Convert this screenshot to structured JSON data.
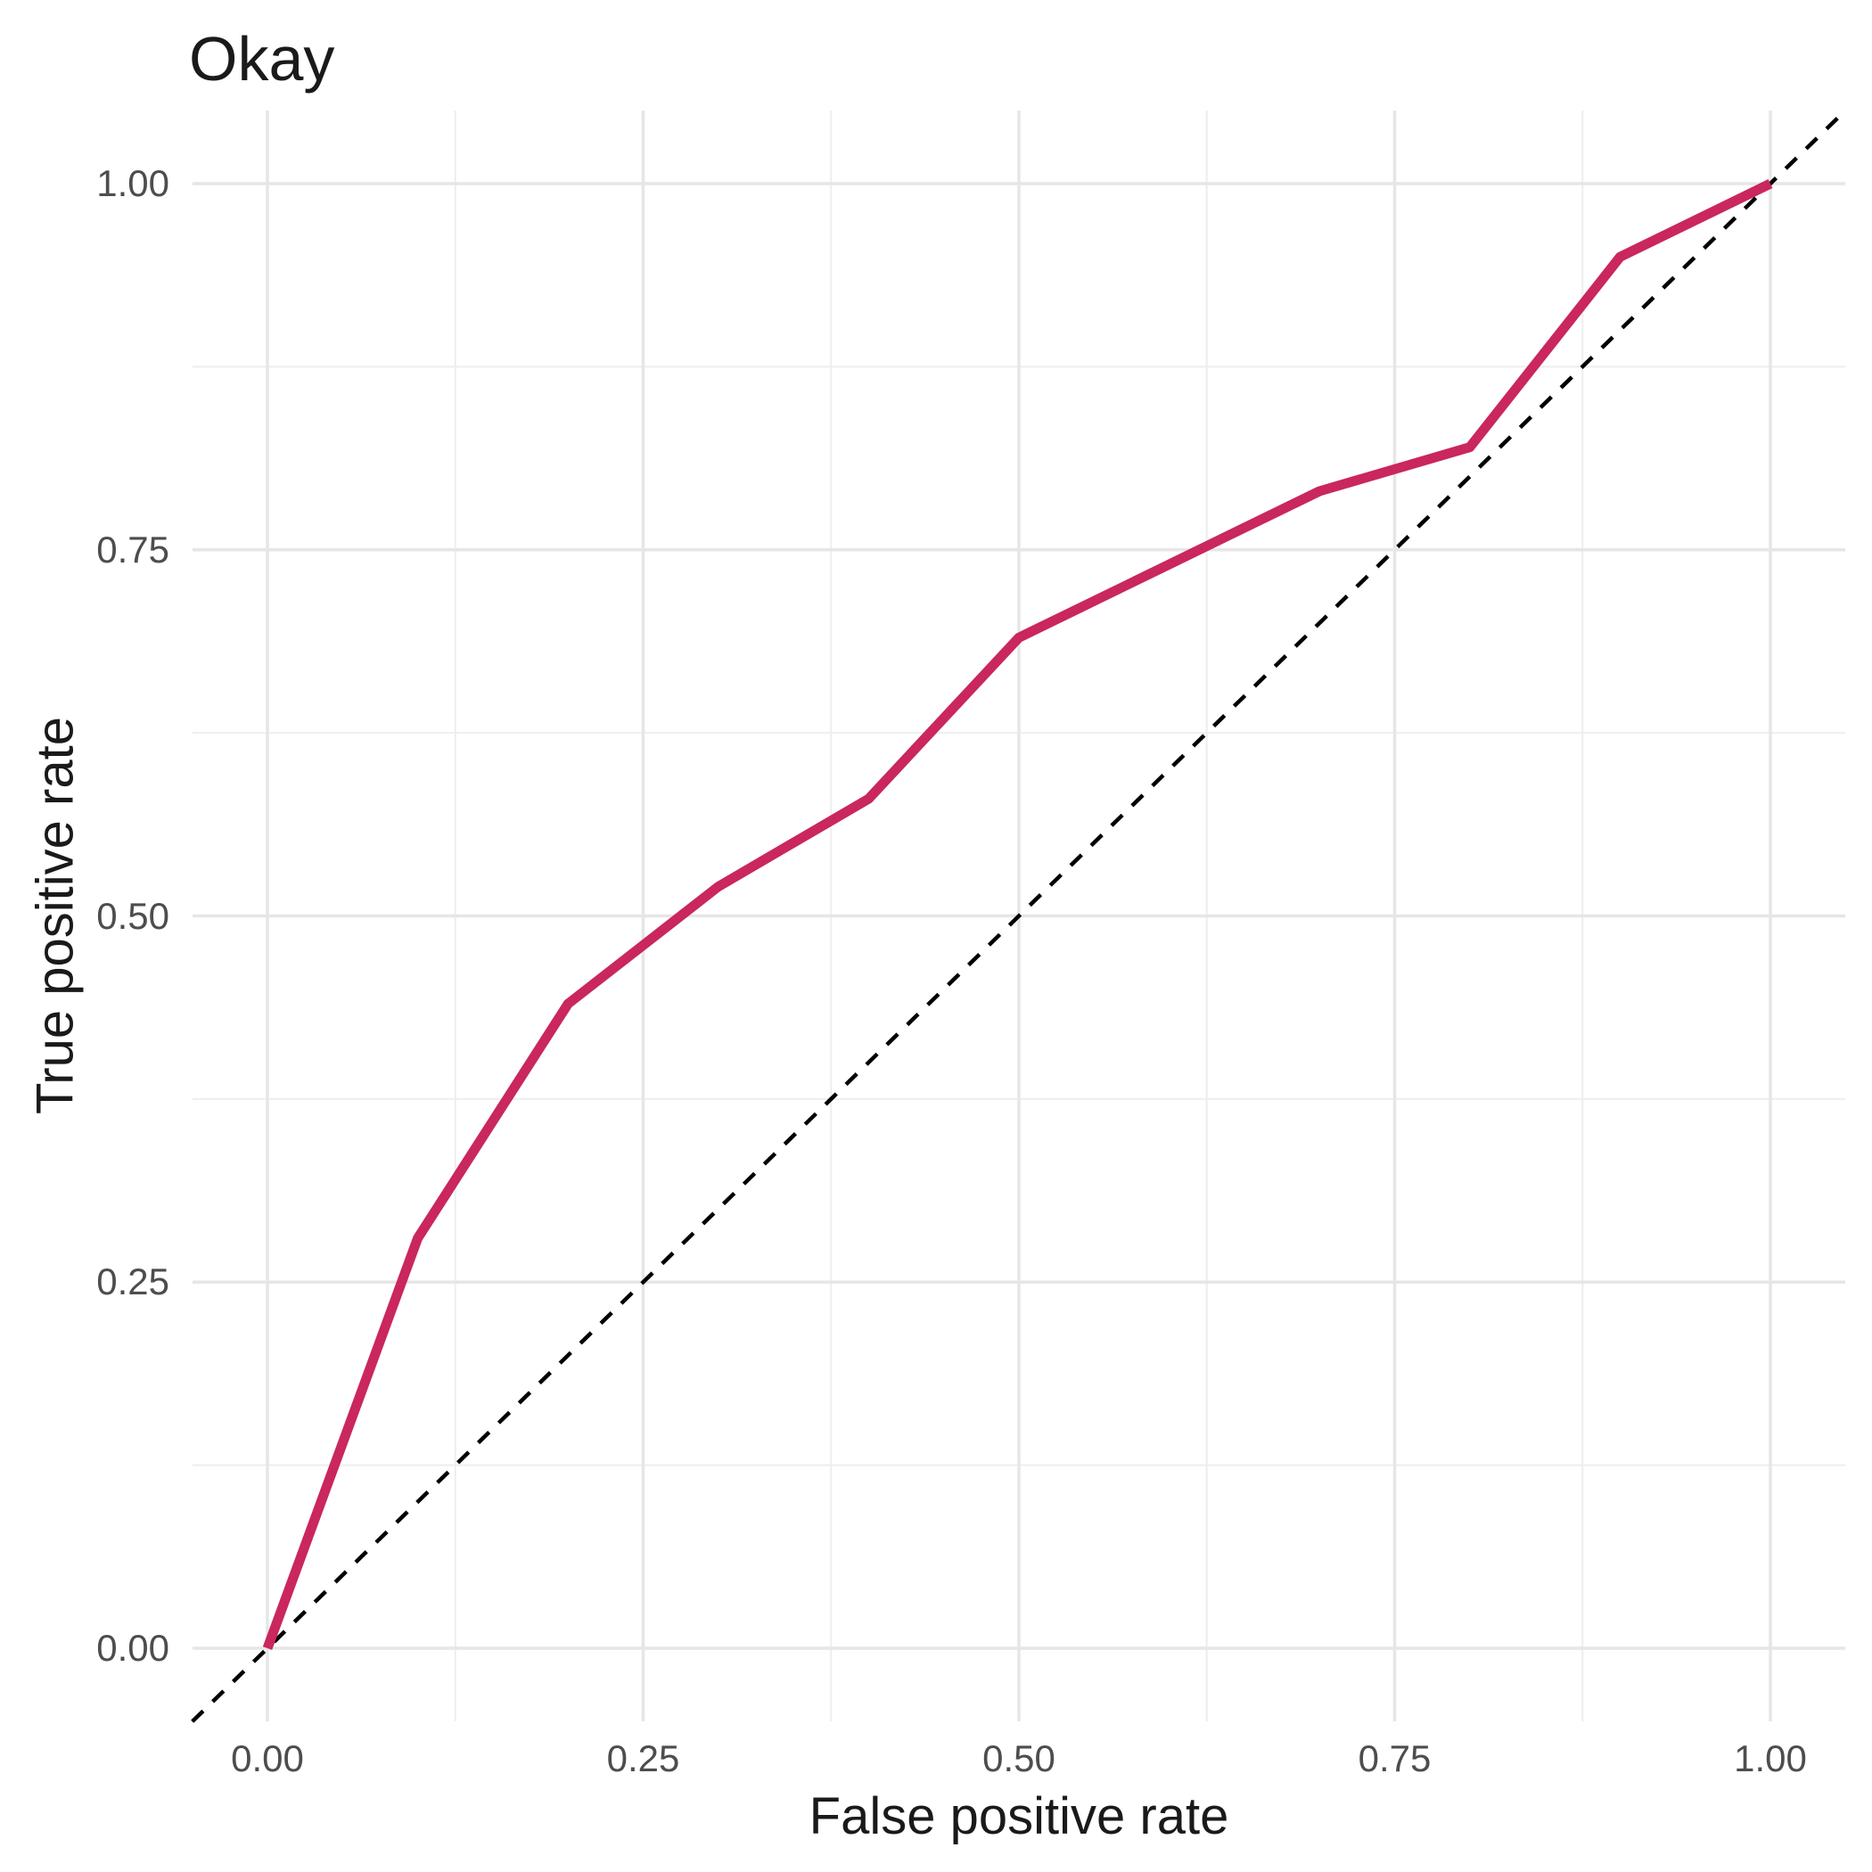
{
  "title": "Okay",
  "x_axis": {
    "label": "False positive rate",
    "tick_labels": [
      "0.00",
      "0.25",
      "0.50",
      "0.75",
      "1.00"
    ],
    "tick_values": [
      0,
      0.25,
      0.5,
      0.75,
      1.0
    ]
  },
  "y_axis": {
    "label": "True positive rate",
    "tick_labels": [
      "0.00",
      "0.25",
      "0.50",
      "0.75",
      "1.00"
    ],
    "tick_values": [
      0,
      0.25,
      0.5,
      0.75,
      1.0
    ]
  },
  "colors": {
    "curve": "#C9275E",
    "reference_line": "#000000",
    "grid_major": "#E6E6E6",
    "grid_minor": "#EEEEEE",
    "tick_text": "#4D4D4D",
    "title_text": "#1A1A1A",
    "background": "#FFFFFF"
  },
  "chart_data": {
    "type": "line",
    "title": "Okay",
    "xlabel": "False positive rate",
    "ylabel": "True positive rate",
    "xlim": [
      -0.05,
      1.05
    ],
    "ylim": [
      -0.05,
      1.05
    ],
    "grid": "on",
    "grid_minor_values": [
      0.125,
      0.375,
      0.625,
      0.875
    ],
    "legend": "none",
    "series": [
      {
        "name": "roc-curve",
        "style": "solid",
        "color": "#C9275E",
        "x": [
          0.0,
          0.1,
          0.2,
          0.3,
          0.4,
          0.5,
          0.7,
          0.8,
          0.9,
          1.0
        ],
        "y": [
          0.0,
          0.28,
          0.44,
          0.52,
          0.58,
          0.69,
          0.79,
          0.82,
          0.95,
          1.0
        ]
      },
      {
        "name": "chance-diagonal",
        "style": "dashed",
        "color": "#000000",
        "x": [
          -0.05,
          1.05
        ],
        "y": [
          -0.05,
          1.05
        ]
      }
    ]
  }
}
